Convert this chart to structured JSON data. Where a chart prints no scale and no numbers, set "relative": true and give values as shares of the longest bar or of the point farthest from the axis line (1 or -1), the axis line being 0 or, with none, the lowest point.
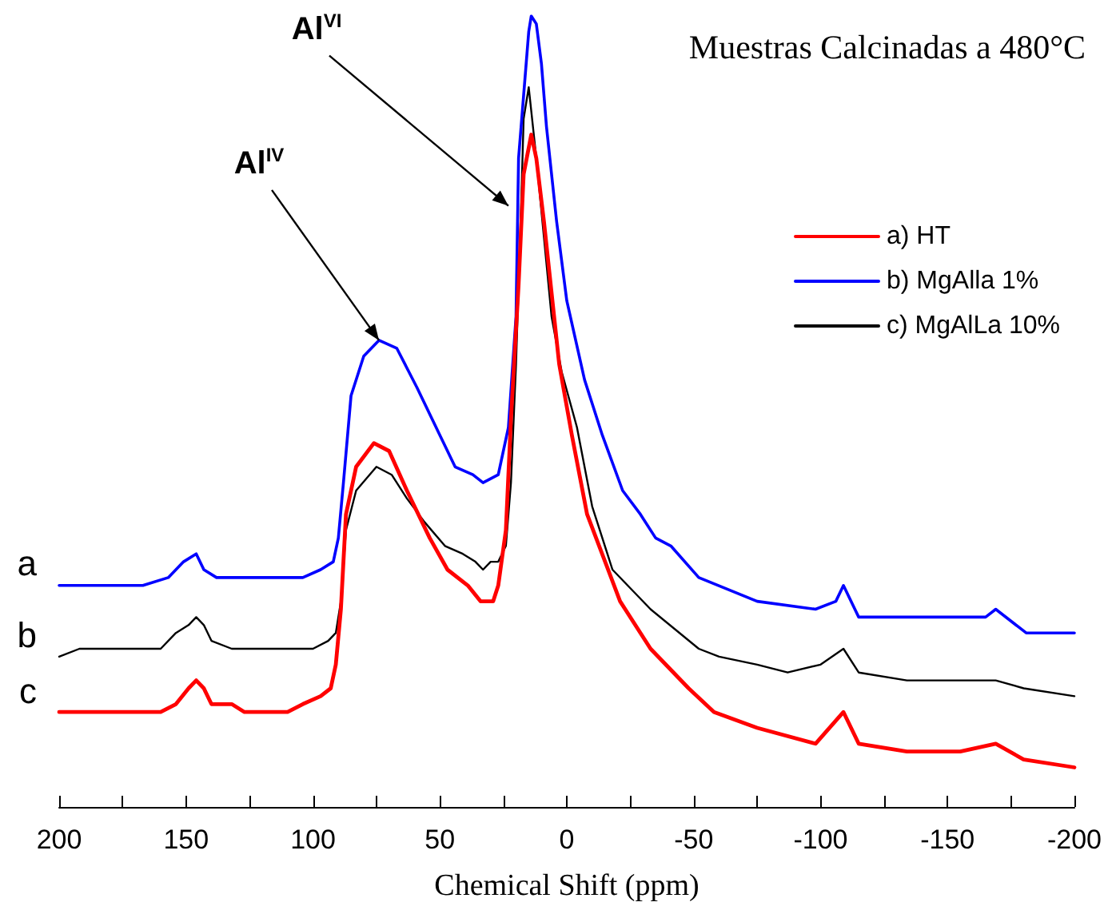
{
  "chart_data": {
    "type": "line",
    "title": "Muestras Calcinadas a 480°C",
    "xlabel": "Chemical Shift (ppm)",
    "relative": true,
    "xlim": [
      200,
      -200
    ],
    "xticks": [
      200,
      {
        "value": 175,
        "label": null
      },
      150,
      {
        "value": 125,
        "label": null
      },
      100,
      {
        "value": 75,
        "label": null
      },
      50,
      {
        "value": 25,
        "label": null
      },
      0,
      {
        "value": -25,
        "label": null
      },
      -50,
      {
        "value": -75,
        "label": null
      },
      -100,
      {
        "value": -125,
        "label": null
      },
      -150,
      {
        "value": -175,
        "label": null
      },
      -200
    ],
    "grid": false,
    "legend": "top right",
    "marker": "none",
    "line_style": "solid",
    "series": [
      {
        "name": "a) HT",
        "color": "#ff0000",
        "x": [
          200,
          185,
          176,
          167,
          160,
          154,
          149,
          146,
          143,
          140,
          132,
          127,
          119,
          110,
          104,
          97,
          93,
          91,
          89,
          87,
          83,
          76,
          70,
          63,
          54,
          47,
          39,
          34,
          29,
          27,
          24,
          22,
          19,
          17,
          14,
          12,
          9,
          6,
          3,
          -2,
          -8,
          -21,
          -33,
          -48,
          -58,
          -75,
          -98,
          -109,
          -115,
          -134,
          -155,
          -169,
          -180,
          -200
        ],
        "values": [
          0.12,
          0.12,
          0.12,
          0.12,
          0.12,
          0.13,
          0.15,
          0.16,
          0.15,
          0.13,
          0.13,
          0.12,
          0.12,
          0.12,
          0.13,
          0.14,
          0.15,
          0.18,
          0.25,
          0.37,
          0.43,
          0.46,
          0.45,
          0.4,
          0.34,
          0.3,
          0.28,
          0.26,
          0.26,
          0.28,
          0.35,
          0.49,
          0.66,
          0.8,
          0.85,
          0.82,
          0.74,
          0.65,
          0.56,
          0.47,
          0.37,
          0.26,
          0.2,
          0.15,
          0.12,
          0.1,
          0.08,
          0.12,
          0.08,
          0.07,
          0.07,
          0.08,
          0.06,
          0.05
        ]
      },
      {
        "name": "b) MgAlla 1%",
        "color": "#0000ff",
        "x": [
          200,
          192,
          184,
          176,
          167,
          157,
          151,
          146,
          143,
          138,
          132,
          122,
          113,
          104,
          97,
          92,
          90,
          88,
          85,
          80,
          74,
          67,
          59,
          50,
          44,
          37,
          33,
          27,
          23,
          20,
          19,
          17,
          15,
          14,
          12,
          10,
          8,
          4,
          0,
          -7,
          -14,
          -22,
          -29,
          -35,
          -41,
          -52,
          -75,
          -98,
          -106,
          -109,
          -115,
          -134,
          -165,
          -169,
          -181,
          -200
        ],
        "values": [
          0.28,
          0.28,
          0.28,
          0.28,
          0.28,
          0.29,
          0.31,
          0.32,
          0.3,
          0.29,
          0.29,
          0.29,
          0.29,
          0.29,
          0.3,
          0.31,
          0.34,
          0.41,
          0.52,
          0.57,
          0.59,
          0.58,
          0.53,
          0.47,
          0.43,
          0.42,
          0.41,
          0.42,
          0.48,
          0.62,
          0.82,
          0.9,
          0.98,
          1.0,
          0.99,
          0.94,
          0.86,
          0.74,
          0.64,
          0.54,
          0.47,
          0.4,
          0.37,
          0.34,
          0.33,
          0.29,
          0.26,
          0.25,
          0.26,
          0.28,
          0.24,
          0.24,
          0.24,
          0.25,
          0.22,
          0.22
        ]
      },
      {
        "name": "c) MgAlLa 10%",
        "color": "#000000",
        "x": [
          200,
          192,
          184,
          176,
          167,
          160,
          154,
          149,
          146,
          143,
          140,
          132,
          122,
          113,
          104,
          100,
          94,
          91,
          89,
          87,
          83,
          75,
          69,
          63,
          56,
          48,
          41,
          36,
          33,
          30,
          27,
          24,
          22,
          20,
          18,
          17,
          15,
          12,
          9,
          6,
          2,
          -4,
          -10,
          -18,
          -33,
          -52,
          -60,
          -75,
          -87,
          -100,
          -109,
          -115,
          -134,
          -155,
          -169,
          -180,
          -200
        ],
        "values": [
          0.19,
          0.2,
          0.2,
          0.2,
          0.2,
          0.2,
          0.22,
          0.23,
          0.24,
          0.23,
          0.21,
          0.2,
          0.2,
          0.2,
          0.2,
          0.2,
          0.21,
          0.22,
          0.26,
          0.35,
          0.4,
          0.43,
          0.42,
          0.39,
          0.36,
          0.33,
          0.32,
          0.31,
          0.3,
          0.31,
          0.31,
          0.33,
          0.41,
          0.56,
          0.76,
          0.87,
          0.91,
          0.82,
          0.72,
          0.62,
          0.55,
          0.48,
          0.38,
          0.3,
          0.25,
          0.2,
          0.19,
          0.18,
          0.17,
          0.18,
          0.2,
          0.17,
          0.16,
          0.16,
          0.16,
          0.15,
          0.14
        ]
      }
    ],
    "annotations": [
      {
        "text": "a",
        "x": 200,
        "y": 0.28
      },
      {
        "text": "b",
        "x": 200,
        "y": 0.19
      },
      {
        "text": "c",
        "x": 200,
        "y": 0.12
      },
      {
        "text": "Al$^{IV}$",
        "x": 74,
        "y": 0.59
      },
      {
        "text": "Al$^{VI}$",
        "x": 23,
        "y": 0.76
      }
    ]
  }
}
